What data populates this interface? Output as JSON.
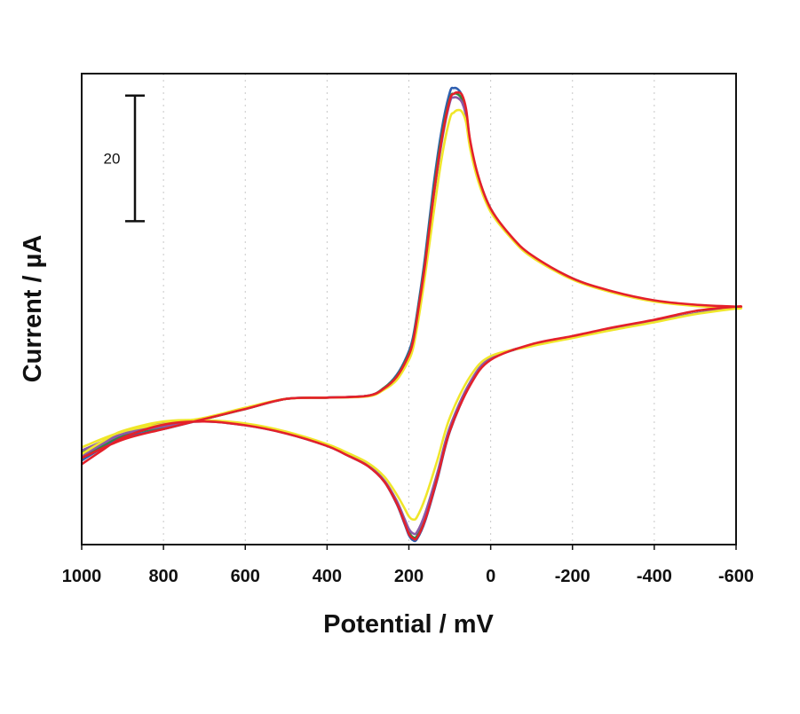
{
  "chart_data": {
    "type": "line",
    "title": "",
    "xlabel": "Potential / mV",
    "ylabel": "Current / µA",
    "xlim": [
      1000,
      -600
    ],
    "x_reversed": true,
    "xticks": [
      1000,
      800,
      600,
      400,
      200,
      0,
      -200,
      -400,
      -600
    ],
    "ylim": [
      -37,
      38
    ],
    "y_ticks_shown": false,
    "vertical_gridlines": "dotted",
    "scale_bar": {
      "label": "20",
      "value": 20
    },
    "legend": "none",
    "description_of_series": "overlaid cyclic voltammograms, multiple cycles",
    "series": [
      {
        "color": "#2f5fb0",
        "anodic_x": [
          1000,
          900,
          800,
          700,
          600,
          500,
          400,
          300,
          260,
          230,
          205,
          190,
          175,
          160,
          140,
          120,
          100,
          90,
          80,
          70,
          60,
          50,
          30,
          0,
          -50,
          -100,
          -200,
          -300,
          -400,
          -500,
          -600
        ],
        "anodic_y": [
          -22.6,
          -20.0,
          -18.6,
          -17.0,
          -15.4,
          -13.8,
          -13.6,
          -13.3,
          -12.0,
          -10.0,
          -7.0,
          -4.0,
          2.0,
          9.0,
          20.0,
          29.0,
          35.0,
          35.7,
          35.5,
          34.5,
          32.0,
          27.0,
          21.5,
          16.5,
          12.0,
          9.0,
          5.4,
          3.2,
          1.8,
          1.1,
          0.8
        ],
        "cathodic_x": [
          -600,
          -500,
          -400,
          -300,
          -200,
          -100,
          0,
          50,
          100,
          130,
          160,
          180,
          190,
          200,
          210,
          230,
          260,
          300,
          350,
          400,
          500,
          600,
          700,
          800,
          900,
          950,
          1000
        ],
        "cathodic_y": [
          0.8,
          -0.2,
          -1.5,
          -2.6,
          -3.9,
          -5.2,
          -7.5,
          -11.5,
          -19.0,
          -26.5,
          -33.2,
          -36.1,
          -36.3,
          -35.5,
          -33.8,
          -30.5,
          -27.0,
          -24.5,
          -22.8,
          -21.3,
          -19.3,
          -18.0,
          -17.4,
          -17.9,
          -19.8,
          -21.6,
          -23.6
        ]
      },
      {
        "color": "#2e8b3d",
        "anodic_x": [
          1000,
          900,
          800,
          700,
          600,
          500,
          400,
          300,
          260,
          230,
          205,
          190,
          175,
          160,
          140,
          120,
          100,
          90,
          80,
          70,
          60,
          50,
          30,
          0,
          -50,
          -100,
          -200,
          -300,
          -400,
          -500,
          -600
        ],
        "anodic_y": [
          -22.4,
          -19.6,
          -18.3,
          -17.0,
          -15.4,
          -13.8,
          -13.6,
          -13.3,
          -12.0,
          -10.2,
          -7.3,
          -4.5,
          1.5,
          8.2,
          19.0,
          28.0,
          34.0,
          34.8,
          34.7,
          33.9,
          31.5,
          26.8,
          21.3,
          16.4,
          12.0,
          9.0,
          5.3,
          3.2,
          1.8,
          1.1,
          0.8
        ],
        "cathodic_x": [
          -600,
          -500,
          -400,
          -300,
          -200,
          -100,
          0,
          50,
          100,
          130,
          160,
          180,
          190,
          200,
          210,
          230,
          260,
          300,
          350,
          400,
          500,
          600,
          700,
          800,
          900,
          950,
          1000
        ],
        "cathodic_y": [
          0.8,
          -0.2,
          -1.5,
          -2.6,
          -3.9,
          -5.2,
          -7.4,
          -11.3,
          -18.7,
          -26.0,
          -32.6,
          -35.6,
          -35.8,
          -35.0,
          -33.4,
          -30.3,
          -26.9,
          -24.4,
          -22.7,
          -21.2,
          -19.2,
          -17.9,
          -17.3,
          -17.7,
          -19.6,
          -21.3,
          -23.2
        ]
      },
      {
        "color": "#8a5aa8",
        "anodic_x": [
          1000,
          900,
          800,
          700,
          600,
          500,
          400,
          300,
          260,
          230,
          205,
          190,
          175,
          160,
          140,
          120,
          100,
          90,
          80,
          70,
          60,
          50,
          30,
          0,
          -50,
          -100,
          -200,
          -300,
          -400,
          -500,
          -600
        ],
        "anodic_y": [
          -22.0,
          -19.4,
          -18.2,
          -16.9,
          -15.3,
          -13.8,
          -13.6,
          -13.3,
          -12.1,
          -10.4,
          -7.6,
          -4.9,
          1.0,
          7.5,
          18.0,
          27.0,
          33.4,
          34.2,
          34.1,
          33.4,
          31.2,
          26.6,
          21.2,
          16.3,
          11.9,
          8.9,
          5.3,
          3.2,
          1.8,
          1.1,
          0.8
        ],
        "cathodic_x": [
          -600,
          -500,
          -400,
          -300,
          -200,
          -100,
          0,
          50,
          100,
          130,
          160,
          180,
          190,
          200,
          210,
          230,
          260,
          300,
          350,
          400,
          500,
          600,
          700,
          800,
          900,
          950,
          1000
        ],
        "cathodic_y": [
          0.8,
          -0.2,
          -1.5,
          -2.6,
          -3.9,
          -5.2,
          -7.3,
          -11.1,
          -18.3,
          -25.5,
          -32.0,
          -35.0,
          -35.2,
          -34.5,
          -33.0,
          -30.0,
          -26.8,
          -24.3,
          -22.6,
          -21.1,
          -19.1,
          -17.9,
          -17.3,
          -17.6,
          -19.4,
          -21.0,
          -22.9
        ]
      },
      {
        "color": "#f0e62a",
        "anodic_x": [
          1000,
          900,
          800,
          700,
          600,
          500,
          400,
          300,
          260,
          230,
          205,
          190,
          175,
          160,
          140,
          120,
          100,
          90,
          80,
          70,
          60,
          50,
          30,
          0,
          -50,
          -100,
          -200,
          -300,
          -400,
          -500,
          -600
        ],
        "anodic_y": [
          -21.5,
          -19.0,
          -17.8,
          -16.8,
          -15.2,
          -13.8,
          -13.6,
          -13.4,
          -12.3,
          -10.8,
          -8.2,
          -5.8,
          -0.5,
          6.0,
          15.5,
          24.5,
          30.8,
          31.8,
          32.2,
          31.9,
          30.2,
          26.0,
          20.8,
          16.0,
          11.8,
          8.8,
          5.2,
          3.1,
          1.7,
          1.0,
          0.6
        ],
        "cathodic_x": [
          -600,
          -500,
          -400,
          -300,
          -200,
          -100,
          0,
          50,
          100,
          130,
          160,
          180,
          190,
          200,
          210,
          230,
          260,
          300,
          350,
          400,
          500,
          600,
          700,
          800,
          900,
          950,
          1000
        ],
        "cathodic_y": [
          0.6,
          -0.3,
          -1.6,
          -2.8,
          -4.1,
          -5.4,
          -7.0,
          -10.2,
          -16.8,
          -23.5,
          -29.6,
          -32.6,
          -33.0,
          -32.5,
          -31.3,
          -29.0,
          -26.2,
          -24.0,
          -22.4,
          -21.0,
          -19.0,
          -17.7,
          -17.2,
          -17.4,
          -18.9,
          -20.6,
          -22.6
        ]
      },
      {
        "color": "#e4202a",
        "anodic_x": [
          1000,
          900,
          800,
          700,
          600,
          500,
          400,
          300,
          260,
          230,
          205,
          190,
          175,
          160,
          140,
          120,
          100,
          90,
          80,
          70,
          60,
          50,
          30,
          0,
          -50,
          -100,
          -200,
          -300,
          -400,
          -500,
          -600
        ],
        "anodic_y": [
          -23.2,
          -20.3,
          -18.6,
          -17.0,
          -15.4,
          -13.8,
          -13.6,
          -13.3,
          -12.1,
          -10.3,
          -7.5,
          -4.7,
          1.2,
          7.8,
          18.4,
          27.5,
          33.8,
          34.8,
          35.0,
          34.6,
          32.3,
          27.3,
          21.6,
          16.5,
          12.1,
          9.1,
          5.4,
          3.3,
          1.9,
          1.2,
          0.9
        ],
        "cathodic_x": [
          -600,
          -500,
          -400,
          -300,
          -200,
          -100,
          0,
          50,
          100,
          130,
          160,
          180,
          190,
          200,
          210,
          230,
          260,
          300,
          350,
          400,
          500,
          600,
          700,
          800,
          900,
          950,
          1000
        ],
        "cathodic_y": [
          0.9,
          0.2,
          -1.2,
          -2.4,
          -3.8,
          -5.1,
          -7.6,
          -11.6,
          -18.9,
          -26.3,
          -33.0,
          -35.9,
          -36.0,
          -35.3,
          -33.6,
          -30.4,
          -27.0,
          -24.5,
          -22.8,
          -21.3,
          -19.3,
          -18.0,
          -17.4,
          -17.9,
          -20.0,
          -22.0,
          -24.2
        ]
      }
    ]
  }
}
